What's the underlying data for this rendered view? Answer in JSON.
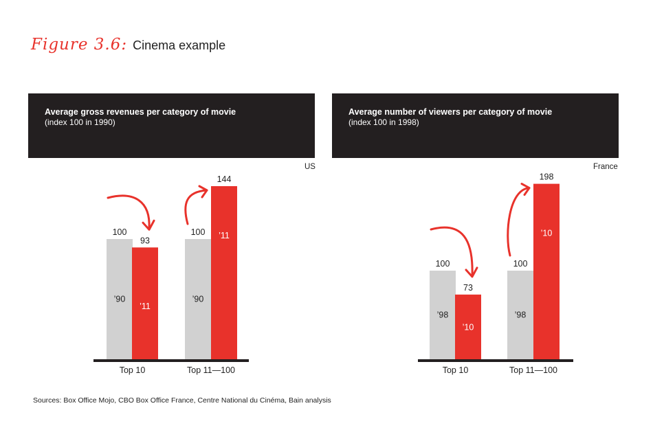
{
  "figure": {
    "label": "Figure 3.6:",
    "title": "Cinema example"
  },
  "colors": {
    "grey": "#d1d1d1",
    "red": "#e8322b",
    "dark": "#231f20"
  },
  "chart_data": [
    {
      "type": "bar",
      "title": "Average gross revenues per category of movie",
      "subtitle": "(index 100 in 1990)",
      "region": "US",
      "categories": [
        "Top 10",
        "Top 11—100"
      ],
      "series": [
        {
          "name": "’90",
          "values": [
            100,
            100
          ]
        },
        {
          "name": "’11",
          "values": [
            93,
            144
          ]
        }
      ],
      "ylim": [
        0,
        160
      ],
      "annotations": [
        "decrease-arrow",
        "increase-arrow"
      ]
    },
    {
      "type": "bar",
      "title": "Average number of viewers per category of movie",
      "subtitle": "(index 100 in 1998)",
      "region": "France",
      "categories": [
        "Top 10",
        "Top 11—100"
      ],
      "series": [
        {
          "name": "’98",
          "values": [
            100,
            100
          ]
        },
        {
          "name": "’10",
          "values": [
            73,
            198
          ]
        }
      ],
      "ylim": [
        0,
        210
      ],
      "annotations": [
        "decrease-arrow",
        "increase-arrow"
      ]
    }
  ],
  "sources": "Sources: Box Office Mojo, CBO Box Office France, Centre National du Cinéma, Bain analysis"
}
